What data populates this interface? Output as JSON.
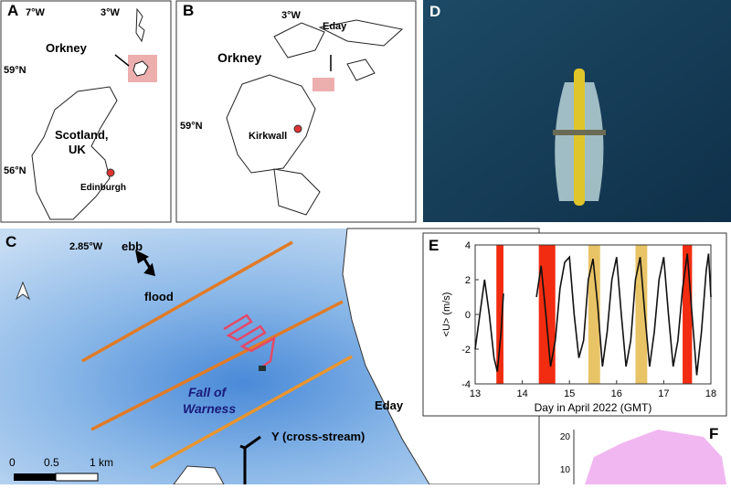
{
  "panels": {
    "A": {
      "letter": "A",
      "lon_labels": [
        "7°W",
        "3°W"
      ],
      "lat_labels": [
        "59°N",
        "56°N"
      ],
      "orkney": "Orkney",
      "scotland": [
        "Scotland,",
        "UK"
      ],
      "edinburgh": "Edinburgh"
    },
    "B": {
      "letter": "B",
      "lon_label": "3°W",
      "lat_label": "59°N",
      "eday": "Eday",
      "orkney": "Orkney",
      "kirkwall": "Kirkwall"
    },
    "C": {
      "letter": "C",
      "lon_label": "2.85°W",
      "ebb": "ebb",
      "flood": "flood",
      "site": [
        "Fall of",
        "Warness"
      ],
      "eday": "Eday",
      "axis": "Y (cross-stream)",
      "scale": [
        "0",
        "0.5",
        "1 km"
      ]
    },
    "D": {
      "letter": "D"
    },
    "F": {
      "letter": "F",
      "yticks": [
        10,
        20
      ]
    }
  },
  "chart_data": {
    "type": "line",
    "panel": "E",
    "ylabel": "<U> (m/s)",
    "xlabel": "Day in April 2022 (GMT)",
    "xlim": [
      13,
      18
    ],
    "xticks": [
      13,
      14,
      15,
      16,
      17,
      18
    ],
    "ylim": [
      -4,
      4
    ],
    "yticks": [
      -4,
      -2,
      0,
      2,
      4
    ],
    "shaded": [
      {
        "start": 13.45,
        "end": 13.6,
        "color": "#f22c10"
      },
      {
        "start": 14.35,
        "end": 14.7,
        "color": "#f22c10"
      },
      {
        "start": 15.4,
        "end": 15.65,
        "color": "#e9c467"
      },
      {
        "start": 16.4,
        "end": 16.65,
        "color": "#e9c467"
      },
      {
        "start": 17.4,
        "end": 17.6,
        "color": "#f22c10"
      }
    ],
    "series": [
      {
        "color": "#111111",
        "x": [
          13.0,
          13.1,
          13.2,
          13.3,
          13.4,
          13.47,
          13.55,
          13.6,
          13.8,
          14.3,
          14.4,
          14.5,
          14.6,
          14.7,
          14.8,
          14.9,
          15.0,
          15.1,
          15.2,
          15.3,
          15.4,
          15.5,
          15.6,
          15.7,
          15.8,
          15.9,
          16.0,
          16.1,
          16.2,
          16.3,
          16.4,
          16.5,
          16.6,
          16.7,
          16.8,
          16.9,
          17.0,
          17.1,
          17.2,
          17.3,
          17.4,
          17.5,
          17.6,
          17.7,
          17.8,
          17.9,
          17.95,
          18.0
        ],
        "values": [
          -2.0,
          0,
          2.0,
          0,
          -2.5,
          -3.3,
          -1,
          1.2,
          null,
          1.0,
          2.8,
          0,
          -3.0,
          -1.5,
          1.5,
          3.0,
          3.3,
          0,
          -2.5,
          -1.5,
          2.0,
          3.2,
          0.5,
          -3.0,
          -1.0,
          2.0,
          3.3,
          0,
          -3.0,
          -1.5,
          2.0,
          3.3,
          0,
          -3.0,
          -1.0,
          2.0,
          3.3,
          0,
          -3.0,
          -1.5,
          1.5,
          3.5,
          0,
          -3.5,
          -1.0,
          2.5,
          3.5,
          1.0
        ]
      }
    ]
  }
}
